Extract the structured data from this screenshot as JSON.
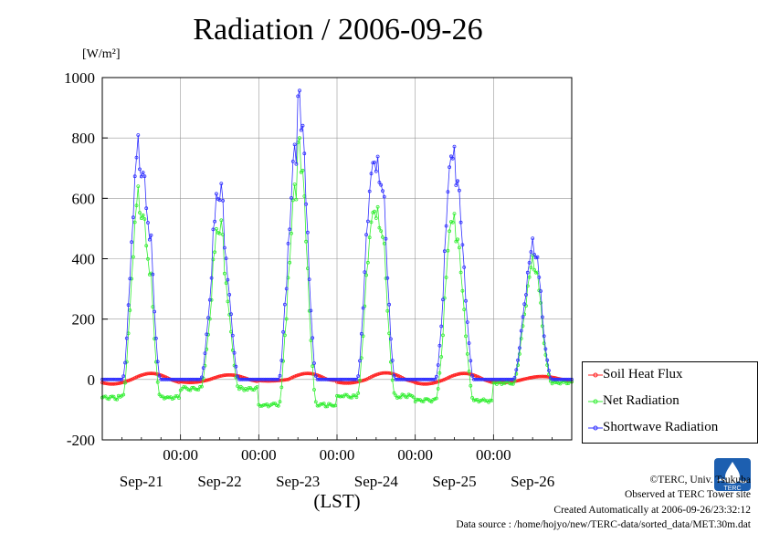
{
  "title": "Radiation / 2006-09-26",
  "unit_label": "[W/m²]",
  "xlabel": "(LST)",
  "time_labels": [
    "00:00",
    "00:00",
    "00:00",
    "00:00",
    "00:00"
  ],
  "date_labels": [
    "Sep-21",
    "Sep-22",
    "Sep-23",
    "Sep-24",
    "Sep-25",
    "Sep-26"
  ],
  "legend": [
    {
      "label": "Soil Heat Flux",
      "color": "#ff2020"
    },
    {
      "label": "Net Radiation",
      "color": "#33ee33"
    },
    {
      "label": "Shortwave Radiation",
      "color": "#3030ff"
    }
  ],
  "credits": {
    "copyright": "©TERC, Univ. Tsukuba",
    "observed": "Observed at TERC Tower site",
    "created": "Created Automatically at 2006-09-26/23:32:12",
    "source": "Data source : /home/hojyo/new/TERC-data/sorted_data/MET.30m.dat"
  },
  "logo_text": "TERC",
  "chart_data": {
    "type": "line",
    "title": "Radiation / 2006-09-26",
    "ylabel": "[W/m²]",
    "xlabel": "(LST)",
    "xlim": [
      0,
      6
    ],
    "ylim": [
      -200,
      1000
    ],
    "yticks": [
      -200,
      0,
      200,
      400,
      600,
      800,
      1000
    ],
    "ytick_labels": [
      "-200",
      "0",
      "200",
      "400",
      "600",
      "800",
      "1000"
    ],
    "grid": true,
    "legend_position": "right",
    "x_unit": "days since Sep-21 00:00 LST (one point per 30 min)",
    "day_peaks": {
      "shortwave": [
        780,
        590,
        860,
        800,
        730,
        410
      ],
      "net_radiation": [
        620,
        480,
        720,
        620,
        520,
        360
      ],
      "soil_heat_flux": [
        20,
        15,
        20,
        22,
        20,
        10
      ]
    },
    "night_levels": {
      "net_radiation": [
        -60,
        -30,
        -85,
        -55,
        -70,
        -10
      ],
      "soil_heat_flux": [
        -15,
        -10,
        -5,
        -12,
        -15,
        -10
      ]
    },
    "series": [
      {
        "name": "Soil Heat Flux",
        "color": "#ff2020"
      },
      {
        "name": "Net Radiation",
        "color": "#33ee33"
      },
      {
        "name": "Shortwave Radiation",
        "color": "#3030ff"
      }
    ]
  }
}
